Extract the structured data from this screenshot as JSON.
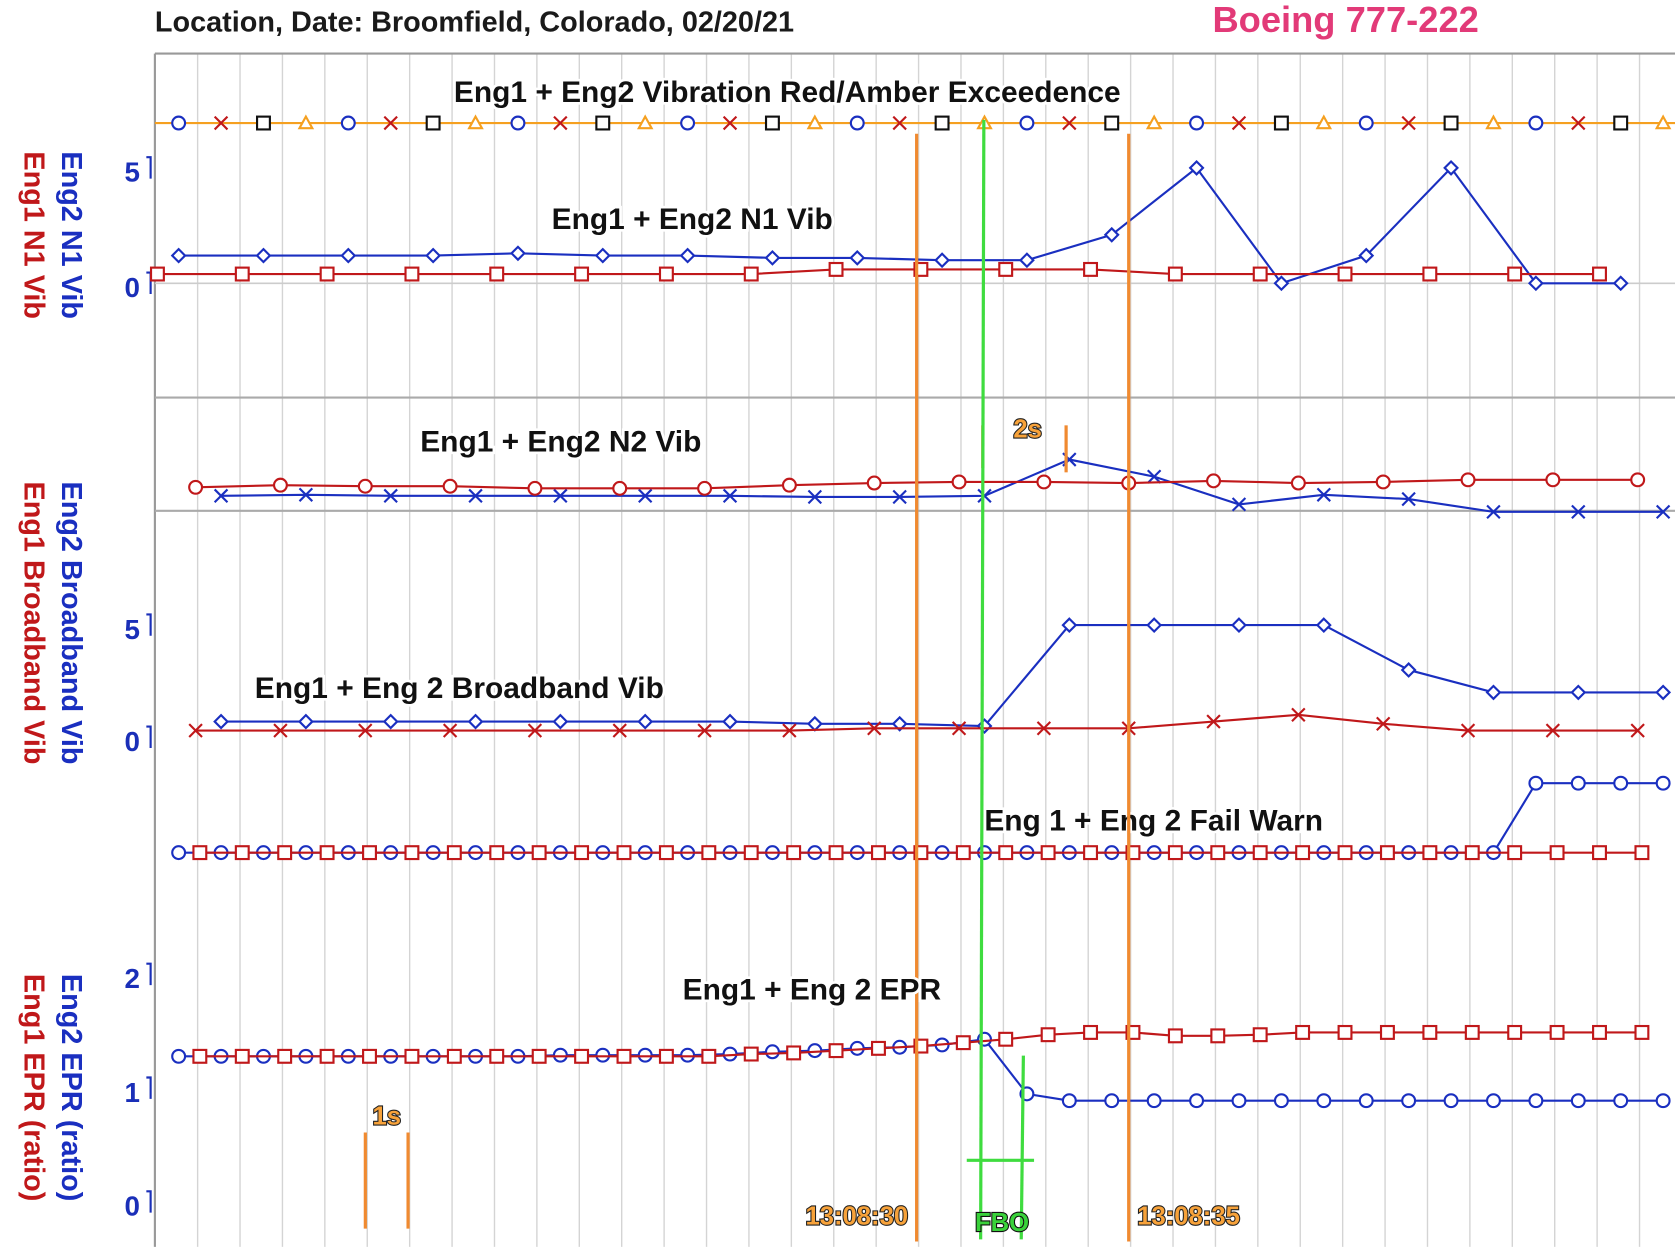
{
  "header": {
    "location": "Location, Date: Broomfield, Colorado, 02/20/21",
    "aircraft": "Boeing 777-222"
  },
  "annotations": [
    {
      "text": "1s"
    },
    {
      "text": "2s"
    },
    {
      "text": "FBO"
    }
  ],
  "chart_data": [
    {
      "type": "strip",
      "title": "Eng1 + Eng2 Vibration Red/Amber Exceedence",
      "xlim": [
        -17.96,
        17.88
      ],
      "series": [
        {
          "color": "#1a2fc0",
          "marker": "circle",
          "x": [
            -17.4,
            -13.4,
            -9.4,
            -5.4,
            -1.4,
            2.6,
            6.6,
            10.6,
            14.6
          ]
        },
        {
          "color": "#c0181a",
          "marker": "x",
          "x": [
            -16.4,
            -12.4,
            -8.4,
            -4.4,
            -0.4,
            3.6,
            7.6,
            11.6,
            15.6
          ]
        },
        {
          "color": "#111111",
          "marker": "square",
          "x": [
            -15.4,
            -11.4,
            -7.4,
            -3.4,
            0.6,
            4.6,
            8.6,
            12.6,
            16.6
          ]
        },
        {
          "color": "#f5a020",
          "marker": "triangle",
          "x": [
            -14.4,
            -10.4,
            -6.4,
            -2.4,
            1.6,
            5.6,
            9.6,
            13.6,
            17.6
          ]
        }
      ]
    },
    {
      "type": "line",
      "title": "Eng1 + Eng2 N1 Vib",
      "xlim": [
        -17.96,
        17.88
      ],
      "ylim": [
        0,
        5
      ],
      "yticks": [
        0,
        5
      ],
      "series": [
        {
          "name": "Eng2 N1 Vib",
          "color": "#1a2fc0",
          "marker": "diamond",
          "x": [
            -17.4,
            -15.4,
            -13.4,
            -11.4,
            -9.4,
            -7.4,
            -5.4,
            -3.4,
            -1.4,
            0.6,
            2.6,
            4.6,
            6.6,
            8.6,
            10.6,
            12.6,
            14.6,
            16.6
          ],
          "values": [
            1.2,
            1.2,
            1.2,
            1.2,
            1.3,
            1.2,
            1.2,
            1.1,
            1.1,
            1.0,
            1.0,
            2.1,
            5.0,
            0,
            1.2,
            5.0,
            0,
            0
          ]
        },
        {
          "name": "Eng1 N1 Vib",
          "color": "#c0181a",
          "marker": "square",
          "x": [
            -17.9,
            -15.9,
            -13.9,
            -11.9,
            -9.9,
            -7.9,
            -5.9,
            -3.9,
            -1.9,
            0.1,
            2.1,
            4.1,
            6.1,
            8.1,
            10.1,
            12.1,
            14.1,
            16.1
          ],
          "values": [
            0.4,
            0.4,
            0.4,
            0.4,
            0.4,
            0.4,
            0.4,
            0.4,
            0.6,
            0.6,
            0.6,
            0.6,
            0.4,
            0.4,
            0.4,
            0.4,
            0.4,
            0.4
          ]
        }
      ]
    },
    {
      "type": "line",
      "title": "Eng1 + Eng2 N2 Vib",
      "xlim": [
        -17.96,
        17.88
      ],
      "ylim": [
        0,
        10
      ],
      "series": [
        {
          "color": "#1a2fc0",
          "marker": "x",
          "x": [
            -16.4,
            -14.4,
            -12.4,
            -10.4,
            -8.4,
            -6.4,
            -4.4,
            -2.4,
            -0.4,
            1.6,
            3.6,
            5.6,
            7.6,
            9.6,
            11.6,
            13.6,
            15.6,
            17.6
          ],
          "values": [
            1.6,
            1.7,
            1.6,
            1.6,
            1.6,
            1.6,
            1.6,
            1.5,
            1.5,
            1.6,
            5.0,
            3.4,
            0.8,
            1.7,
            1.3,
            0.1,
            0.1,
            0.1
          ]
        },
        {
          "color": "#c0181a",
          "marker": "circle",
          "x": [
            -17,
            -15,
            -13,
            -11,
            -9,
            -7,
            -5,
            -3,
            -1,
            1,
            3,
            5,
            7,
            9,
            11,
            13,
            15,
            17
          ],
          "values": [
            2.4,
            2.6,
            2.5,
            2.5,
            2.3,
            2.3,
            2.3,
            2.6,
            2.8,
            2.9,
            2.9,
            2.8,
            3.0,
            2.8,
            2.9,
            3.1,
            3.1,
            3.1
          ]
        }
      ]
    },
    {
      "type": "line",
      "title": "Eng1 + Eng 2 Broadband Vib",
      "xlim": [
        -17.96,
        17.88
      ],
      "ylim": [
        0,
        5
      ],
      "yticks": [
        0,
        5
      ],
      "series": [
        {
          "name": "Eng2 Broadband Vib",
          "color": "#1a2fc0",
          "marker": "diamond",
          "x": [
            -16.4,
            -14.4,
            -12.4,
            -10.4,
            -8.4,
            -6.4,
            -4.4,
            -2.4,
            -0.4,
            1.6,
            3.6,
            5.6,
            7.6,
            9.6,
            11.6,
            13.6,
            15.6,
            17.6
          ],
          "values": [
            0.7,
            0.7,
            0.7,
            0.7,
            0.7,
            0.7,
            0.7,
            0.6,
            0.6,
            0.5,
            5,
            5,
            5,
            5,
            3.0,
            2.0,
            2.0,
            2.0
          ]
        },
        {
          "name": "Eng1 Broadband Vib",
          "color": "#c0181a",
          "marker": "x",
          "x": [
            -17,
            -15,
            -13,
            -11,
            -9,
            -7,
            -5,
            -3,
            -1,
            1,
            3,
            5,
            7,
            9,
            11,
            13,
            15,
            17
          ],
          "values": [
            0.3,
            0.3,
            0.3,
            0.3,
            0.3,
            0.3,
            0.3,
            0.3,
            0.4,
            0.4,
            0.4,
            0.4,
            0.7,
            1.0,
            0.6,
            0.3,
            0.3,
            0.3
          ]
        }
      ]
    },
    {
      "type": "line",
      "title": "Eng 1 + Eng 2 Fail Warn",
      "xlim": [
        -17.96,
        17.88
      ],
      "ylim": [
        0,
        1
      ],
      "series": [
        {
          "color": "#1a2fc0",
          "marker": "circle",
          "x": [
            -17.4,
            -16.4,
            -15.4,
            -14.4,
            -13.4,
            -12.4,
            -11.4,
            -10.4,
            -9.4,
            -8.4,
            -7.4,
            -6.4,
            -5.4,
            -4.4,
            -3.4,
            -2.4,
            -1.4,
            -0.4,
            0.6,
            1.6,
            2.6,
            3.6,
            4.6,
            5.6,
            6.6,
            7.6,
            8.6,
            9.6,
            10.6,
            11.6,
            12.6,
            13.6,
            14.6,
            15.6,
            16.6,
            17.6
          ],
          "values": [
            0,
            0,
            0,
            0,
            0,
            0,
            0,
            0,
            0,
            0,
            0,
            0,
            0,
            0,
            0,
            0,
            0,
            0,
            0,
            0,
            0,
            0,
            0,
            0,
            0,
            0,
            0,
            0,
            0,
            0,
            0,
            0,
            1,
            1,
            1,
            1
          ]
        },
        {
          "color": "#c0181a",
          "marker": "square",
          "x": [
            -16.9,
            -15.9,
            -14.9,
            -13.9,
            -12.9,
            -11.9,
            -10.9,
            -9.9,
            -8.9,
            -7.9,
            -6.9,
            -5.9,
            -4.9,
            -3.9,
            -2.9,
            -1.9,
            -0.9,
            0.1,
            1.1,
            2.1,
            3.1,
            4.1,
            5.1,
            6.1,
            7.1,
            8.1,
            9.1,
            10.1,
            11.1,
            12.1,
            13.1,
            14.1,
            15.1,
            16.1,
            17.1
          ],
          "values": [
            0,
            0,
            0,
            0,
            0,
            0,
            0,
            0,
            0,
            0,
            0,
            0,
            0,
            0,
            0,
            0,
            0,
            0,
            0,
            0,
            0,
            0,
            0,
            0,
            0,
            0,
            0,
            0,
            0,
            0,
            0,
            0,
            0,
            0,
            0
          ]
        }
      ]
    },
    {
      "type": "line",
      "title": "Eng1 + Eng 2 EPR",
      "xlim": [
        -17.96,
        17.88
      ],
      "ylim": [
        0,
        2
      ],
      "yticks": [
        0,
        1,
        2
      ],
      "xticks": [
        {
          "value": 0,
          "label": "13:08:30"
        },
        {
          "value": 5,
          "label": "13:08:35"
        }
      ],
      "series": [
        {
          "name": "Eng2 EPR (ratio)",
          "color": "#1a2fc0",
          "marker": "circle",
          "x": [
            -17.4,
            -16.4,
            -15.4,
            -14.4,
            -13.4,
            -12.4,
            -11.4,
            -10.4,
            -9.4,
            -8.4,
            -7.4,
            -6.4,
            -5.4,
            -4.4,
            -3.4,
            -2.4,
            -1.4,
            -0.4,
            0.6,
            1.6,
            2.6,
            3.6,
            4.6,
            5.6,
            6.6,
            7.6,
            8.6,
            9.6,
            10.6,
            11.6,
            12.6,
            13.6,
            14.6,
            15.6,
            16.6,
            17.6
          ],
          "values": [
            1.28,
            1.28,
            1.28,
            1.28,
            1.28,
            1.28,
            1.28,
            1.28,
            1.28,
            1.29,
            1.29,
            1.29,
            1.29,
            1.3,
            1.32,
            1.33,
            1.35,
            1.36,
            1.38,
            1.43,
            0.95,
            0.89,
            0.89,
            0.89,
            0.89,
            0.89,
            0.89,
            0.89,
            0.89,
            0.89,
            0.89,
            0.89,
            0.89,
            0.89,
            0.89,
            0.89
          ]
        },
        {
          "name": "Eng1 EPR (ratio)",
          "color": "#c0181a",
          "marker": "square",
          "x": [
            -16.9,
            -15.9,
            -14.9,
            -13.9,
            -12.9,
            -11.9,
            -10.9,
            -9.9,
            -8.9,
            -7.9,
            -6.9,
            -5.9,
            -4.9,
            -3.9,
            -2.9,
            -1.9,
            -0.9,
            0.1,
            1.1,
            2.1,
            3.1,
            4.1,
            5.1,
            6.1,
            7.1,
            8.1,
            9.1,
            10.1,
            11.1,
            12.1,
            13.1,
            14.1,
            15.1,
            16.1,
            17.1
          ],
          "values": [
            1.28,
            1.28,
            1.28,
            1.28,
            1.28,
            1.28,
            1.28,
            1.28,
            1.28,
            1.28,
            1.28,
            1.28,
            1.28,
            1.3,
            1.31,
            1.33,
            1.35,
            1.37,
            1.4,
            1.43,
            1.47,
            1.49,
            1.49,
            1.46,
            1.46,
            1.47,
            1.49,
            1.49,
            1.49,
            1.49,
            1.49,
            1.49,
            1.49,
            1.49,
            1.49
          ]
        }
      ]
    }
  ]
}
